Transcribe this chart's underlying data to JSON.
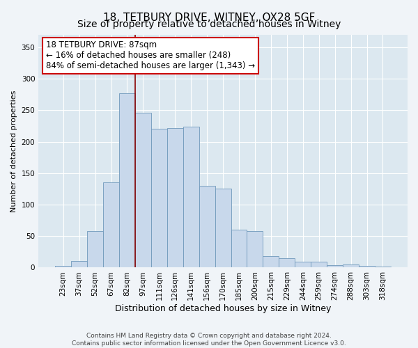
{
  "title": "18, TETBURY DRIVE, WITNEY, OX28 5GF",
  "subtitle": "Size of property relative to detached houses in Witney",
  "xlabel": "Distribution of detached houses by size in Witney",
  "ylabel": "Number of detached properties",
  "bar_color": "#c8d8eb",
  "bar_edge_color": "#7099bb",
  "bar_labels": [
    "23sqm",
    "37sqm",
    "52sqm",
    "67sqm",
    "82sqm",
    "97sqm",
    "111sqm",
    "126sqm",
    "141sqm",
    "156sqm",
    "170sqm",
    "185sqm",
    "200sqm",
    "215sqm",
    "229sqm",
    "244sqm",
    "259sqm",
    "274sqm",
    "288sqm",
    "303sqm",
    "318sqm"
  ],
  "bar_values": [
    3,
    10,
    58,
    135,
    277,
    246,
    221,
    222,
    224,
    130,
    125,
    60,
    58,
    18,
    15,
    9,
    9,
    4,
    5,
    3,
    2
  ],
  "annotation_line1": "18 TETBURY DRIVE: 87sqm",
  "annotation_line2": "← 16% of detached houses are smaller (248)",
  "annotation_line3": "84% of semi-detached houses are larger (1,343) →",
  "annotation_box_color": "#ffffff",
  "annotation_box_edge": "#cc0000",
  "vline_x": 4.5,
  "vline_color": "#880000",
  "ylim": [
    0,
    370
  ],
  "yticks": [
    0,
    50,
    100,
    150,
    200,
    250,
    300,
    350
  ],
  "background_color": "#dce8f0",
  "plot_bg_color": "#dce8f0",
  "fig_bg_color": "#f0f4f8",
  "grid_color": "#ffffff",
  "footer_text": "Contains HM Land Registry data © Crown copyright and database right 2024.\nContains public sector information licensed under the Open Government Licence v3.0.",
  "title_fontsize": 11,
  "subtitle_fontsize": 10,
  "xlabel_fontsize": 9,
  "ylabel_fontsize": 8,
  "tick_fontsize": 7.5,
  "annotation_fontsize": 8.5,
  "footer_fontsize": 6.5
}
